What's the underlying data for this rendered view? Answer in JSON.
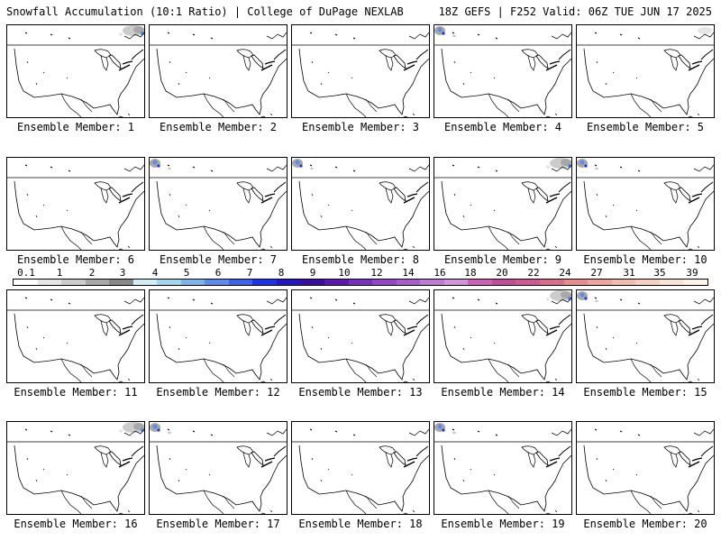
{
  "header": {
    "left": "Snowfall Accumulation (10:1 Ratio) | College of DuPage NEXLAB",
    "right": "18Z GEFS | F252 Valid: 06Z TUE JUN 17 2025"
  },
  "colorbar": {
    "labels": [
      "0.1",
      "1",
      "2",
      "3",
      "4",
      "5",
      "6",
      "7",
      "8",
      "9",
      "10",
      "12",
      "14",
      "16",
      "18",
      "20",
      "22",
      "24",
      "27",
      "31",
      "35",
      "39"
    ],
    "colors": [
      "#ffffff",
      "#e6e6e6",
      "#cccccc",
      "#a8a8a8",
      "#888888",
      "#cfeef5",
      "#9ed7ef",
      "#7ab6ee",
      "#5a8cf0",
      "#3a64f0",
      "#1c32ee",
      "#2018c8",
      "#3b0aa3",
      "#5e16b5",
      "#7a2ec3",
      "#9644cc",
      "#a85ccf",
      "#c079d5",
      "#d394dc",
      "#cf60b9",
      "#c24c9c",
      "#d35792",
      "#dd6b8a",
      "#e88d8c",
      "#eea69a",
      "#f2bcaa",
      "#f6d2bd",
      "#fae4d2",
      "#fdf3e6"
    ]
  },
  "panels": [
    {
      "label": "Ensemble Member: 1",
      "snow": "ne"
    },
    {
      "label": "Ensemble Member: 2",
      "snow": "none"
    },
    {
      "label": "Ensemble Member: 3",
      "snow": "none"
    },
    {
      "label": "Ensemble Member: 4",
      "snow": "nw"
    },
    {
      "label": "Ensemble Member: 5",
      "snow": "ne-light"
    },
    {
      "label": "Ensemble Member: 6",
      "snow": "none"
    },
    {
      "label": "Ensemble Member: 7",
      "snow": "nw"
    },
    {
      "label": "Ensemble Member: 8",
      "snow": "nw"
    },
    {
      "label": "Ensemble Member: 9",
      "snow": "ne"
    },
    {
      "label": "Ensemble Member: 10",
      "snow": "nw"
    },
    {
      "label": "Ensemble Member: 11",
      "snow": "none"
    },
    {
      "label": "Ensemble Member: 12",
      "snow": "none"
    },
    {
      "label": "Ensemble Member: 13",
      "snow": "none"
    },
    {
      "label": "Ensemble Member: 14",
      "snow": "ne"
    },
    {
      "label": "Ensemble Member: 15",
      "snow": "nw"
    },
    {
      "label": "Ensemble Member: 16",
      "snow": "ne"
    },
    {
      "label": "Ensemble Member: 17",
      "snow": "nw"
    },
    {
      "label": "Ensemble Member: 18",
      "snow": "none"
    },
    {
      "label": "Ensemble Member: 19",
      "snow": "nw"
    },
    {
      "label": "Ensemble Member: 20",
      "snow": "none"
    }
  ]
}
